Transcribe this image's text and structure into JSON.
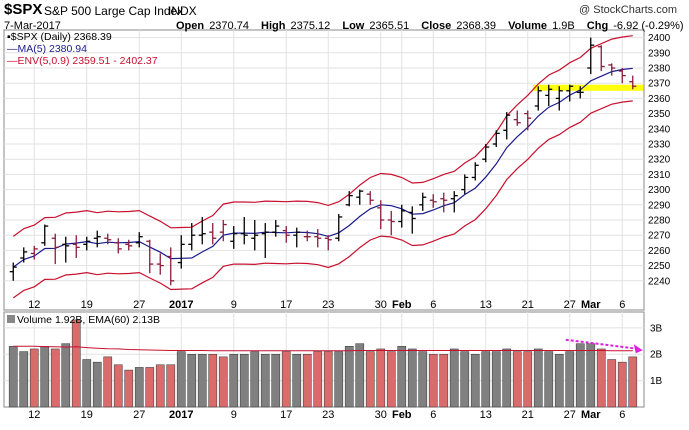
{
  "header": {
    "symbol": "$SPX",
    "name": "S&P 500 Large Cap Index",
    "exchange": "INDX",
    "date": "7-Mar-2017",
    "open_label": "Open",
    "open": "2370.74",
    "high_label": "High",
    "high": "2375.12",
    "low_label": "Low",
    "low": "2365.51",
    "close_label": "Close",
    "close": "2368.39",
    "volume_label": "Volume",
    "volume": "1.9B",
    "chg_label": "Chg",
    "chg": "-6.92 (-0.29%)",
    "chg_arrow": "▼",
    "brand": "@ StockCharts.com"
  },
  "legend": {
    "price": "$SPX (Daily) 2368.39",
    "ma": "MA(5) 2380.94",
    "env": "ENV(5,0.9) 2359.51 - 2402.37",
    "volume": "Volume 1.92B, EMA(60) 2.13B"
  },
  "colors": {
    "up": "#000000",
    "down": "#8b1a3a",
    "ma": "#1a1a8c",
    "env": "#c8102e",
    "highlight": "#ffff00",
    "vol_up": "#808080",
    "vol_down": "#d96b6b",
    "vol_ema": "#c8102e",
    "arrow": "#e020e0"
  },
  "chart_data": {
    "type": "ohlc",
    "ylim": [
      2230,
      2405
    ],
    "yticks": [
      2240,
      2250,
      2260,
      2270,
      2280,
      2290,
      2300,
      2310,
      2320,
      2330,
      2340,
      2350,
      2360,
      2370,
      2380,
      2390,
      2400
    ],
    "xlabels": [
      {
        "label": "12",
        "i": 2
      },
      {
        "label": "19",
        "i": 7
      },
      {
        "label": "27",
        "i": 12
      },
      {
        "label": "2017",
        "i": 16,
        "bold": true
      },
      {
        "label": "9",
        "i": 21
      },
      {
        "label": "17",
        "i": 26
      },
      {
        "label": "23",
        "i": 30
      },
      {
        "label": "30",
        "i": 35
      },
      {
        "label": "Feb",
        "i": 37,
        "bold": true
      },
      {
        "label": "6",
        "i": 40
      },
      {
        "label": "13",
        "i": 45
      },
      {
        "label": "21",
        "i": 49
      },
      {
        "label": "27",
        "i": 53
      },
      {
        "label": "Mar",
        "i": 55,
        "bold": true
      },
      {
        "label": "6",
        "i": 58
      }
    ],
    "bars": [
      {
        "o": 2246,
        "h": 2252,
        "l": 2240,
        "c": 2249,
        "up": true
      },
      {
        "o": 2255,
        "h": 2262,
        "l": 2252,
        "c": 2259,
        "up": true
      },
      {
        "o": 2258,
        "h": 2263,
        "l": 2254,
        "c": 2261,
        "up": false
      },
      {
        "o": 2265,
        "h": 2277,
        "l": 2263,
        "c": 2276,
        "up": true
      },
      {
        "o": 2268,
        "h": 2271,
        "l": 2251,
        "c": 2262,
        "up": false
      },
      {
        "o": 2264,
        "h": 2269,
        "l": 2252,
        "c": 2263,
        "up": true
      },
      {
        "o": 2264,
        "h": 2270,
        "l": 2255,
        "c": 2262,
        "up": false
      },
      {
        "o": 2264,
        "h": 2269,
        "l": 2260,
        "c": 2266,
        "up": true
      },
      {
        "o": 2268,
        "h": 2273,
        "l": 2262,
        "c": 2269,
        "up": true
      },
      {
        "o": 2268,
        "h": 2271,
        "l": 2264,
        "c": 2267,
        "up": false
      },
      {
        "o": 2265,
        "h": 2268,
        "l": 2258,
        "c": 2261,
        "up": false
      },
      {
        "o": 2264,
        "h": 2267,
        "l": 2260,
        "c": 2263,
        "up": false
      },
      {
        "o": 2265,
        "h": 2272,
        "l": 2262,
        "c": 2269,
        "up": true
      },
      {
        "o": 2266,
        "h": 2267,
        "l": 2245,
        "c": 2251,
        "up": false
      },
      {
        "o": 2251,
        "h": 2258,
        "l": 2244,
        "c": 2250,
        "up": false
      },
      {
        "o": 2256,
        "h": 2262,
        "l": 2237,
        "c": 2240,
        "up": false
      },
      {
        "o": 2252,
        "h": 2270,
        "l": 2248,
        "c": 2264,
        "up": true
      },
      {
        "o": 2264,
        "h": 2278,
        "l": 2260,
        "c": 2270,
        "up": true
      },
      {
        "o": 2270,
        "h": 2282,
        "l": 2264,
        "c": 2271,
        "up": true
      },
      {
        "o": 2272,
        "h": 2278,
        "l": 2264,
        "c": 2268,
        "up": false
      },
      {
        "o": 2272,
        "h": 2280,
        "l": 2266,
        "c": 2277,
        "up": false
      },
      {
        "o": 2266,
        "h": 2276,
        "l": 2261,
        "c": 2271,
        "up": true
      },
      {
        "o": 2271,
        "h": 2282,
        "l": 2264,
        "c": 2270,
        "up": true
      },
      {
        "o": 2268,
        "h": 2280,
        "l": 2260,
        "c": 2270,
        "up": true
      },
      {
        "o": 2271,
        "h": 2278,
        "l": 2255,
        "c": 2272,
        "up": true
      },
      {
        "o": 2272,
        "h": 2280,
        "l": 2269,
        "c": 2276,
        "up": true
      },
      {
        "o": 2273,
        "h": 2276,
        "l": 2265,
        "c": 2270,
        "up": false
      },
      {
        "o": 2270,
        "h": 2275,
        "l": 2262,
        "c": 2272,
        "up": true
      },
      {
        "o": 2269,
        "h": 2273,
        "l": 2266,
        "c": 2269,
        "up": false
      },
      {
        "o": 2269,
        "h": 2274,
        "l": 2262,
        "c": 2268,
        "up": false
      },
      {
        "o": 2268,
        "h": 2270,
        "l": 2260,
        "c": 2267,
        "up": false
      },
      {
        "o": 2268,
        "h": 2284,
        "l": 2266,
        "c": 2282,
        "up": true
      },
      {
        "o": 2290,
        "h": 2299,
        "l": 2289,
        "c": 2296,
        "up": true
      },
      {
        "o": 2295,
        "h": 2300,
        "l": 2290,
        "c": 2299,
        "up": true
      },
      {
        "o": 2297,
        "h": 2299,
        "l": 2290,
        "c": 2293,
        "up": false
      },
      {
        "o": 2288,
        "h": 2293,
        "l": 2274,
        "c": 2280,
        "up": false
      },
      {
        "o": 2280,
        "h": 2286,
        "l": 2270,
        "c": 2279,
        "up": false
      },
      {
        "o": 2279,
        "h": 2290,
        "l": 2275,
        "c": 2286,
        "up": true
      },
      {
        "o": 2285,
        "h": 2289,
        "l": 2271,
        "c": 2281,
        "up": true
      },
      {
        "o": 2290,
        "h": 2298,
        "l": 2286,
        "c": 2295,
        "up": true
      },
      {
        "o": 2293,
        "h": 2297,
        "l": 2288,
        "c": 2292,
        "up": false
      },
      {
        "o": 2294,
        "h": 2298,
        "l": 2285,
        "c": 2293,
        "up": false
      },
      {
        "o": 2294,
        "h": 2299,
        "l": 2285,
        "c": 2296,
        "up": true
      },
      {
        "o": 2300,
        "h": 2310,
        "l": 2297,
        "c": 2308,
        "up": true
      },
      {
        "o": 2308,
        "h": 2318,
        "l": 2306,
        "c": 2316,
        "up": true
      },
      {
        "o": 2320,
        "h": 2330,
        "l": 2318,
        "c": 2328,
        "up": true
      },
      {
        "o": 2330,
        "h": 2339,
        "l": 2328,
        "c": 2337,
        "up": true
      },
      {
        "o": 2339,
        "h": 2351,
        "l": 2333,
        "c": 2349,
        "up": true
      },
      {
        "o": 2346,
        "h": 2352,
        "l": 2342,
        "c": 2344,
        "up": false
      },
      {
        "o": 2350,
        "h": 2352,
        "l": 2339,
        "c": 2347,
        "up": false
      },
      {
        "o": 2355,
        "h": 2368,
        "l": 2352,
        "c": 2365,
        "up": true
      },
      {
        "o": 2362,
        "h": 2369,
        "l": 2355,
        "c": 2366,
        "up": true
      },
      {
        "o": 2360,
        "h": 2368,
        "l": 2352,
        "c": 2365,
        "up": true
      },
      {
        "o": 2365,
        "h": 2369,
        "l": 2358,
        "c": 2368,
        "up": true
      },
      {
        "o": 2364,
        "h": 2368,
        "l": 2360,
        "c": 2364,
        "up": true
      },
      {
        "o": 2380,
        "h": 2400,
        "l": 2376,
        "c": 2395,
        "up": true
      },
      {
        "o": 2394,
        "h": 2395,
        "l": 2378,
        "c": 2381,
        "up": false
      },
      {
        "o": 2382,
        "h": 2383,
        "l": 2375,
        "c": 2380,
        "up": false
      },
      {
        "o": 2378,
        "h": 2380,
        "l": 2370,
        "c": 2375,
        "up": false
      },
      {
        "o": 2371,
        "h": 2375,
        "l": 2366,
        "c": 2368,
        "up": false
      }
    ],
    "volume": {
      "yticks": [
        1,
        2,
        3
      ],
      "ytick_labels": [
        "1B",
        "2B",
        "3B"
      ],
      "ylim": [
        0,
        3.6
      ],
      "values": [
        2.3,
        2.1,
        2.2,
        2.3,
        2.2,
        2.4,
        3.3,
        1.8,
        1.7,
        1.9,
        1.6,
        1.4,
        1.5,
        1.5,
        1.6,
        1.6,
        2.1,
        2.0,
        2.0,
        2.0,
        1.9,
        2.0,
        2.0,
        2.1,
        2.0,
        2.0,
        2.1,
        2.0,
        2.0,
        2.1,
        2.1,
        2.1,
        2.3,
        2.4,
        2.1,
        2.2,
        2.1,
        2.3,
        2.2,
        2.1,
        2.0,
        2.0,
        2.2,
        2.1,
        2.0,
        2.1,
        2.1,
        2.2,
        2.1,
        2.1,
        2.2,
        2.1,
        2.0,
        2.1,
        2.4,
        2.4,
        2.2,
        1.8,
        1.7,
        1.9
      ],
      "ema": [
        2.3,
        2.3,
        2.3,
        2.29,
        2.28,
        2.27,
        2.28,
        2.25,
        2.23,
        2.21,
        2.2,
        2.18,
        2.17,
        2.16,
        2.15,
        2.14,
        2.14,
        2.14,
        2.14,
        2.13,
        2.13,
        2.13,
        2.13,
        2.13,
        2.13,
        2.13,
        2.13,
        2.13,
        2.13,
        2.13,
        2.13,
        2.13,
        2.13,
        2.14,
        2.14,
        2.14,
        2.14,
        2.14,
        2.14,
        2.14,
        2.14,
        2.14,
        2.14,
        2.14,
        2.14,
        2.14,
        2.14,
        2.14,
        2.14,
        2.14,
        2.14,
        2.14,
        2.14,
        2.14,
        2.14,
        2.14,
        2.14,
        2.13,
        2.13,
        2.13
      ],
      "annotation_arrow": {
        "from_i": 53,
        "to_i": 60,
        "y_from": 2.55,
        "y_to": 2.15
      }
    },
    "highlight_band": {
      "y_from": 2365,
      "y_to": 2369,
      "from_i": 50,
      "to_i": 60
    }
  }
}
